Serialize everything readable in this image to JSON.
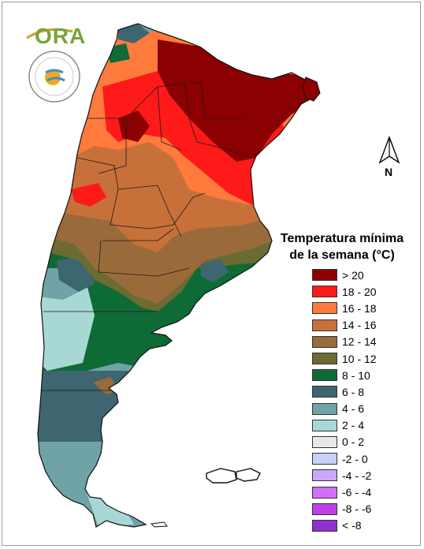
{
  "title_line1": "Temperatura mínima",
  "title_line2": "de la semana (°C)",
  "logo_text": "ORA",
  "north_label": "N",
  "legend": [
    {
      "label": "> 20",
      "color": "#8b0000"
    },
    {
      "label": "18 - 20",
      "color": "#ff1a1a"
    },
    {
      "label": "16 - 18",
      "color": "#ff7a3c"
    },
    {
      "label": "14 - 16",
      "color": "#c8703a"
    },
    {
      "label": "12 - 14",
      "color": "#9a6b3a"
    },
    {
      "label": "10 - 12",
      "color": "#6b6b32"
    },
    {
      "label": "8 - 10",
      "color": "#0f6b35"
    },
    {
      "label": "6 - 8",
      "color": "#3e6670"
    },
    {
      "label": "4 - 6",
      "color": "#6fa3a8"
    },
    {
      "label": "2 - 4",
      "color": "#a8d8d3"
    },
    {
      "label": "0 - 2",
      "color": "#e8e8e8"
    },
    {
      "label": "-2 - 0",
      "color": "#c8d0f8"
    },
    {
      "label": "-4 - -2",
      "color": "#c8a8f8"
    },
    {
      "label": "-6 - -4",
      "color": "#d070f8"
    },
    {
      "label": "-8 - -6",
      "color": "#c040e8"
    },
    {
      "label": "< -8",
      "color": "#9030d0"
    }
  ]
}
